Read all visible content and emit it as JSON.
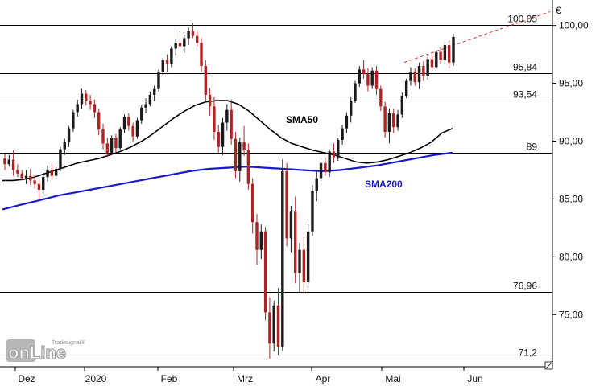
{
  "chart_data": {
    "type": "candlestick",
    "currency_label": "€",
    "y_axis": {
      "range": [
        70.5,
        102.2
      ],
      "ticks": [
        "100,00",
        "95,00",
        "90,00",
        "85,00",
        "80,00",
        "75,00"
      ],
      "position": "right"
    },
    "x_axis": {
      "tick_labels": [
        "Dez",
        "2020",
        "Feb",
        "Mrz",
        "Apr",
        "Mai",
        "Jun"
      ]
    },
    "grid": false,
    "levels": [
      {
        "value": 100.05,
        "label": "100,05"
      },
      {
        "value": 95.84,
        "label": "95,84"
      },
      {
        "value": 93.54,
        "label": "93,54"
      },
      {
        "value": 89,
        "label": "89"
      },
      {
        "value": 76.96,
        "label": "76,96"
      },
      {
        "value": 71.2,
        "label": "71,2"
      }
    ],
    "annotations": [
      {
        "text": "SMA50",
        "color": "#000000"
      },
      {
        "text": "SMA200",
        "color": "#1a1acc"
      }
    ],
    "trendline": {
      "color": "#e03030",
      "style": "dashed",
      "from": 96.8,
      "to": 101.2
    },
    "candle_colors": {
      "up": "#1a1a1a",
      "down": "#b22222"
    },
    "ohlc": [
      [
        88.5,
        89,
        87.5,
        88
      ],
      [
        88,
        88.8,
        87.8,
        88.4
      ],
      [
        88.4,
        89.2,
        87,
        87.5
      ],
      [
        87.5,
        88,
        86.9,
        87.2
      ],
      [
        87.2,
        87.5,
        86.6,
        86.8
      ],
      [
        86.8,
        87.5,
        86.3,
        87
      ],
      [
        87,
        87.6,
        86.2,
        86.6
      ],
      [
        86.6,
        87.1,
        85.9,
        86.3
      ],
      [
        86.3,
        86.7,
        84.9,
        85.8
      ],
      [
        85.8,
        87.3,
        85.4,
        86.9
      ],
      [
        86.9,
        87.9,
        86.5,
        87.5
      ],
      [
        87.5,
        88,
        86.7,
        87
      ],
      [
        87,
        87.9,
        86.7,
        87.6
      ],
      [
        87.6,
        89.5,
        87.4,
        89.3
      ],
      [
        89.3,
        90.2,
        88.8,
        89.9
      ],
      [
        89.9,
        91.3,
        89.5,
        91.1
      ],
      [
        91.1,
        92.7,
        90.8,
        92.5
      ],
      [
        92.5,
        93.6,
        92.1,
        93.2
      ],
      [
        93.2,
        94.5,
        92.8,
        94.1
      ],
      [
        94.1,
        94.4,
        93.1,
        93.5
      ],
      [
        93.5,
        94,
        92.7,
        93.2
      ],
      [
        93.2,
        93.6,
        92,
        92.5
      ],
      [
        92.5,
        92.8,
        90.5,
        91
      ],
      [
        91,
        91.5,
        89.3,
        89.8
      ],
      [
        89.8,
        90.3,
        88.6,
        89
      ],
      [
        89,
        90.5,
        88.8,
        90.3
      ],
      [
        90.3,
        90.6,
        89,
        89.4
      ],
      [
        89.4,
        91.2,
        89.2,
        91
      ],
      [
        91,
        92.3,
        90.7,
        92.1
      ],
      [
        92.1,
        92.4,
        90.9,
        91.3
      ],
      [
        91.3,
        91.6,
        89.9,
        90.4
      ],
      [
        90.4,
        92,
        90.2,
        91.8
      ],
      [
        91.8,
        93.1,
        91.5,
        92.9
      ],
      [
        92.9,
        93.7,
        92.4,
        93.2
      ],
      [
        93.2,
        94.3,
        93,
        94
      ],
      [
        94,
        94.8,
        93.5,
        94.5
      ],
      [
        94.5,
        96.2,
        94.3,
        96
      ],
      [
        96,
        97.2,
        95.7,
        97
      ],
      [
        97,
        97.5,
        96,
        96.7
      ],
      [
        96.7,
        98.2,
        96.4,
        98
      ],
      [
        98,
        98.8,
        97.4,
        98.5
      ],
      [
        98.5,
        99.5,
        98,
        98.2
      ],
      [
        98.2,
        99.2,
        97.6,
        98.9
      ],
      [
        98.9,
        99.8,
        98.3,
        99.5
      ],
      [
        99.5,
        100.2,
        98.9,
        99.1
      ],
      [
        99.1,
        99.6,
        98.2,
        98.5
      ],
      [
        98.5,
        98.9,
        96,
        96.5
      ],
      [
        96.5,
        97,
        93.4,
        94
      ],
      [
        94,
        94.6,
        92.2,
        93
      ],
      [
        93,
        93.8,
        90.1,
        90.8
      ],
      [
        90.8,
        91.4,
        89,
        89.5
      ],
      [
        89.5,
        92,
        88.8,
        91.6
      ],
      [
        91.6,
        93.2,
        90.9,
        92.7
      ],
      [
        92.7,
        93.6,
        89.7,
        90.2
      ],
      [
        90.2,
        90.8,
        86.8,
        87.4
      ],
      [
        87.4,
        90.3,
        86.5,
        89.9
      ],
      [
        89.9,
        91.3,
        88.7,
        89.2
      ],
      [
        89.2,
        89.8,
        85.8,
        86.3
      ],
      [
        86.3,
        86.8,
        82,
        83
      ],
      [
        83,
        83.7,
        79.3,
        80.6
      ],
      [
        80.6,
        82.8,
        79.8,
        82.2
      ],
      [
        82.2,
        82.6,
        74.5,
        75.2
      ],
      [
        75.2,
        76.5,
        71.2,
        72.5
      ],
      [
        72.5,
        76.2,
        71.8,
        75.8
      ],
      [
        75.8,
        77.3,
        71.5,
        72.2
      ],
      [
        72.2,
        88.4,
        71.9,
        87.4
      ],
      [
        87.4,
        88.1,
        80.9,
        81.6
      ],
      [
        81.6,
        84.4,
        80.4,
        83.9
      ],
      [
        83.9,
        85.2,
        77.7,
        78.6
      ],
      [
        78.6,
        81.2,
        76.9,
        80.6
      ],
      [
        80.6,
        81.7,
        76.9,
        77.8
      ],
      [
        77.8,
        82.8,
        77.6,
        82.2
      ],
      [
        82.2,
        86.2,
        81.8,
        85.7
      ],
      [
        85.7,
        87.4,
        84.8,
        86.8
      ],
      [
        86.8,
        88.5,
        86.2,
        88.1
      ],
      [
        88.1,
        88.6,
        87,
        87.3
      ],
      [
        87.3,
        89.3,
        86.9,
        89.1
      ],
      [
        89.1,
        89.8,
        88.1,
        88.6
      ],
      [
        88.6,
        90.3,
        88.3,
        90.1
      ],
      [
        90.1,
        91.4,
        89.7,
        91.1
      ],
      [
        91.1,
        92.5,
        90.7,
        92.2
      ],
      [
        92.2,
        93.8,
        91.6,
        93.5
      ],
      [
        93.5,
        95.2,
        93.3,
        95
      ],
      [
        95,
        96.5,
        94.7,
        96.2
      ],
      [
        96.2,
        97,
        95.4,
        95.8
      ],
      [
        95.8,
        96.3,
        94.3,
        94.8
      ],
      [
        94.8,
        96.4,
        94.5,
        96.1
      ],
      [
        96.1,
        96.5,
        94,
        94.5
      ],
      [
        94.5,
        94.8,
        92.6,
        93
      ],
      [
        93,
        93.4,
        90.3,
        90.8
      ],
      [
        90.8,
        92.8,
        89.8,
        92.4
      ],
      [
        92.4,
        92.8,
        90.7,
        91.2
      ],
      [
        91.2,
        92.7,
        90.9,
        92.3
      ],
      [
        92.3,
        94.2,
        92,
        93.9
      ],
      [
        93.9,
        95.4,
        93.7,
        95.2
      ],
      [
        95.2,
        96.4,
        94.8,
        96
      ],
      [
        96,
        96.3,
        94.8,
        95.1
      ],
      [
        95.1,
        96.8,
        94.5,
        96.5
      ],
      [
        96.5,
        96.9,
        95.2,
        95.6
      ],
      [
        95.6,
        97.4,
        95.3,
        97.1
      ],
      [
        97.1,
        97.5,
        96.1,
        96.4
      ],
      [
        96.4,
        97.9,
        96.2,
        97.7
      ],
      [
        97.7,
        98.1,
        96.7,
        97
      ],
      [
        97,
        98.6,
        96.7,
        98.3
      ],
      [
        98.3,
        98.7,
        96.3,
        96.8
      ],
      [
        96.8,
        99.3,
        96.5,
        99
      ]
    ],
    "series": [
      {
        "name": "SMA50",
        "color": "#000000",
        "values": [
          86.6,
          86.6,
          86.7,
          86.9,
          87.2,
          87.5,
          87.8,
          88.1,
          88.3,
          88.5,
          88.8,
          89.1,
          89.5,
          90,
          90.6,
          91.3,
          92,
          92.6,
          93.1,
          93.4,
          93.5,
          93.5,
          93.2,
          92.6,
          91.8,
          91,
          90.3,
          89.8,
          89.5,
          89.2,
          89,
          88.8,
          88.5,
          88.2,
          88.1,
          88.2,
          88.4,
          88.7,
          89,
          89.4,
          89.9,
          90.7,
          91.1
        ]
      },
      {
        "name": "SMA200",
        "color": "#1a1acc",
        "values": [
          84.1,
          84.5,
          84.9,
          85.3,
          85.6,
          85.9,
          86.2,
          86.5,
          86.8,
          87.1,
          87.4,
          87.6,
          87.7,
          87.8,
          87.7,
          87.6,
          87.5,
          87.4,
          87.5,
          87.7,
          87.9,
          88.2,
          88.5,
          88.8,
          89
        ]
      }
    ]
  },
  "logo": {
    "text": "onLine",
    "sub": "Tradesignal®"
  }
}
